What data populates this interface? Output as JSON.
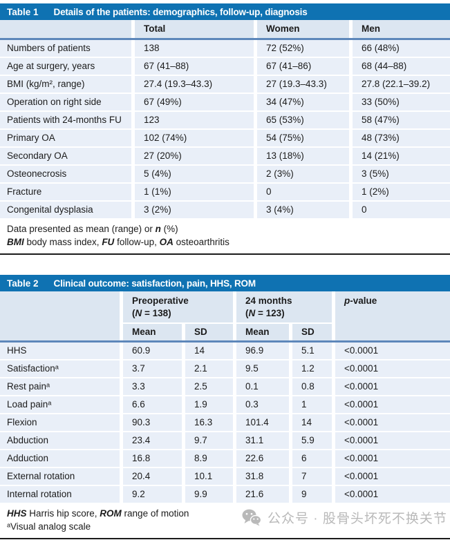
{
  "table1": {
    "tag": "Table 1",
    "title": "Details of the patients: demographics, follow-up, diagnosis",
    "columns": [
      "",
      "Total",
      "Women",
      "Men"
    ],
    "rows": [
      {
        "label": "Numbers of patients",
        "values": [
          "138",
          "72 (52%)",
          "66 (48%)"
        ]
      },
      {
        "label": "Age at surgery, years",
        "values": [
          "67 (41–88)",
          "67 (41–86)",
          "68 (44–88)"
        ]
      },
      {
        "label": "BMI (kg/m², range)",
        "values": [
          "27.4 (19.3–43.3)",
          "27 (19.3–43.3)",
          "27.8 (22.1–39.2)"
        ]
      },
      {
        "label": "Operation on right side",
        "values": [
          "67 (49%)",
          "34 (47%)",
          "33 (50%)"
        ]
      },
      {
        "label": "Patients with 24-months FU",
        "values": [
          "123",
          "65 (53%)",
          "58 (47%)"
        ]
      },
      {
        "label": "Primary OA",
        "values": [
          "102 (74%)",
          "54 (75%)",
          "48 (73%)"
        ]
      },
      {
        "label": "Secondary OA",
        "values": [
          "27 (20%)",
          "13 (18%)",
          "14 (21%)"
        ]
      },
      {
        "label": "Osteonecrosis",
        "values": [
          "5 (4%)",
          "2 (3%)",
          "3 (5%)"
        ]
      },
      {
        "label": "Fracture",
        "values": [
          "1 (1%)",
          "0",
          "1 (2%)"
        ]
      },
      {
        "label": "Congenital dysplasia",
        "values": [
          "3 (2%)",
          "3 (4%)",
          "0"
        ]
      }
    ],
    "footnote_line1": [
      {
        "t": "Data presented as mean (range) or "
      },
      {
        "t": "n",
        "i": true,
        "b": true
      },
      {
        "t": " (%)"
      }
    ],
    "footnote_line2": [
      {
        "t": "BMI",
        "i": true,
        "b": true
      },
      {
        "t": " body mass index, "
      },
      {
        "t": "FU",
        "i": true,
        "b": true
      },
      {
        "t": " follow-up, "
      },
      {
        "t": "OA",
        "i": true,
        "b": true
      },
      {
        "t": " osteoarthritis"
      }
    ]
  },
  "table2": {
    "tag": "Table 2",
    "title": "Clinical outcome: satisfaction, pain, HHS, ROM",
    "group1_line1": "Preoperative",
    "group1_line2": [
      {
        "t": "("
      },
      {
        "t": "N",
        "i": true
      },
      {
        "t": " = 138)"
      }
    ],
    "group2_line1": "24 months",
    "group2_line2": [
      {
        "t": "("
      },
      {
        "t": "N",
        "i": true
      },
      {
        "t": " = 123)"
      }
    ],
    "pvalue_header": [
      {
        "t": "p",
        "i": true
      },
      {
        "t": "-value"
      }
    ],
    "subcolumns": [
      "Mean",
      "SD",
      "Mean",
      "SD"
    ],
    "rows": [
      {
        "label": "HHS",
        "values": [
          "60.9",
          "14",
          "96.9",
          "5.1",
          "<0.0001"
        ]
      },
      {
        "label": "Satisfactionᵃ",
        "values": [
          "3.7",
          "2.1",
          "9.5",
          "1.2",
          "<0.0001"
        ]
      },
      {
        "label": "Rest painᵃ",
        "values": [
          "3.3",
          "2.5",
          "0.1",
          "0.8",
          "<0.0001"
        ]
      },
      {
        "label": "Load painᵃ",
        "values": [
          "6.6",
          "1.9",
          "0.3",
          "1",
          "<0.0001"
        ]
      },
      {
        "label": "Flexion",
        "values": [
          "90.3",
          "16.3",
          "101.4",
          "14",
          "<0.0001"
        ]
      },
      {
        "label": "Abduction",
        "values": [
          "23.4",
          "9.7",
          "31.1",
          "5.9",
          "<0.0001"
        ]
      },
      {
        "label": "Adduction",
        "values": [
          "16.8",
          "8.9",
          "22.6",
          "6",
          "<0.0001"
        ]
      },
      {
        "label": "External rotation",
        "values": [
          "20.4",
          "10.1",
          "31.8",
          "7",
          "<0.0001"
        ]
      },
      {
        "label": "Internal rotation",
        "values": [
          "9.2",
          "9.9",
          "21.6",
          "9",
          "<0.0001"
        ]
      }
    ],
    "footnote_line1": [
      {
        "t": "HHS",
        "i": true,
        "b": true
      },
      {
        "t": " Harris hip score, "
      },
      {
        "t": "ROM",
        "i": true,
        "b": true
      },
      {
        "t": " range of motion"
      }
    ],
    "footnote_line2": [
      {
        "t": "ᵃVisual analog scale"
      }
    ]
  },
  "watermark": {
    "icon": "wechat-icon",
    "text": "公众号 · 股骨头坏死不换关节"
  },
  "colors": {
    "header_bar": "#0f72b2",
    "column_header_bg": "#dce6f1",
    "rule": "#5d87ba",
    "row_bg": "#e9eff8",
    "watermark": "#b9b9b9"
  }
}
